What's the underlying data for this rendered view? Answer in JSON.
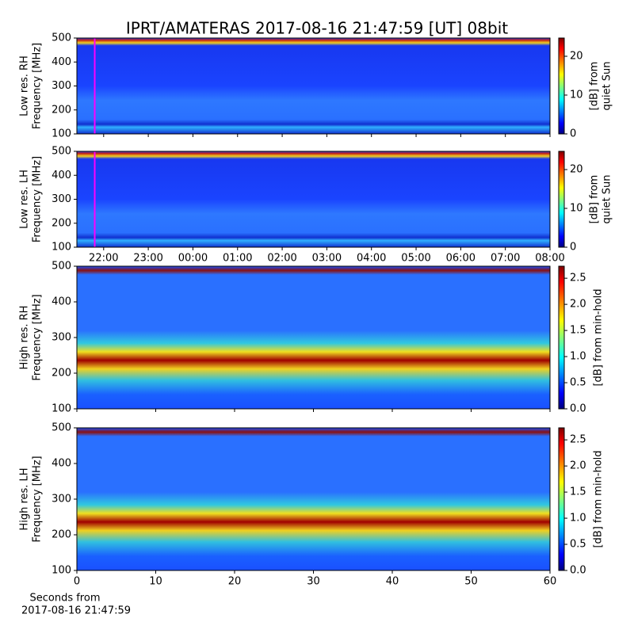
{
  "title": "IPRT/AMATERAS 2017-08-16 21:47:59 [UT]   08bit",
  "chart_data": [
    {
      "type": "spectrogram",
      "ylabel": [
        "Low res. RH",
        "Frequency [MHz]"
      ],
      "ylim": [
        100,
        500
      ],
      "yticks": [
        100,
        200,
        300,
        400,
        500
      ],
      "xlim": [
        21.4,
        32
      ],
      "marker": {
        "value": 21.8,
        "color": "#ff00ff"
      },
      "colorbar": {
        "label": [
          "[dB] from",
          "quiet Sun"
        ],
        "lim": [
          0,
          24.7
        ],
        "ticks": [
          0,
          10,
          20
        ]
      }
    },
    {
      "type": "spectrogram",
      "ylabel": [
        "Low res. LH",
        "Frequency [MHz]"
      ],
      "ylim": [
        100,
        500
      ],
      "yticks": [
        100,
        200,
        300,
        400,
        500
      ],
      "xlim": [
        21.4,
        32
      ],
      "marker": {
        "value": 21.8,
        "color": "#ff00ff"
      },
      "xticks": [
        {
          "value": 22,
          "label": "22:00"
        },
        {
          "value": 23,
          "label": "23:00"
        },
        {
          "value": 24,
          "label": "00:00"
        },
        {
          "value": 25,
          "label": "01:00"
        },
        {
          "value": 26,
          "label": "02:00"
        },
        {
          "value": 27,
          "label": "03:00"
        },
        {
          "value": 28,
          "label": "04:00"
        },
        {
          "value": 29,
          "label": "05:00"
        },
        {
          "value": 30,
          "label": "06:00"
        },
        {
          "value": 31,
          "label": "07:00"
        },
        {
          "value": 32,
          "label": "08:00"
        }
      ],
      "colorbar": {
        "label": [
          "[dB] from",
          "quiet Sun"
        ],
        "lim": [
          0,
          24.7
        ],
        "ticks": [
          0,
          10,
          20
        ]
      }
    },
    {
      "type": "spectrogram",
      "ylabel": [
        "High res. RH",
        "Frequency [MHz]"
      ],
      "ylim": [
        100,
        500
      ],
      "yticks": [
        100,
        200,
        300,
        400,
        500
      ],
      "xlim": [
        0,
        60
      ],
      "colorbar": {
        "label": [
          "[dB] from min-hold"
        ],
        "lim": [
          0,
          2.73
        ],
        "ticks": [
          {
            "value": 0,
            "label": "0.0"
          },
          0.5,
          {
            "value": 1,
            "label": "1.0"
          },
          1.5,
          {
            "value": 2,
            "label": "2.0"
          },
          2.5
        ]
      }
    },
    {
      "type": "spectrogram",
      "ylabel": [
        "High res. LH",
        "Frequency [MHz]"
      ],
      "ylim": [
        100,
        500
      ],
      "yticks": [
        100,
        200,
        300,
        400,
        500
      ],
      "xlim": [
        0,
        60
      ],
      "xticks": [
        0,
        10,
        20,
        30,
        40,
        50,
        60
      ],
      "xlabel": [
        "Seconds from",
        "2017-08-16 21:47:59"
      ],
      "colorbar": {
        "label": [
          "[dB] from min-hold"
        ],
        "lim": [
          0,
          2.73
        ],
        "ticks": [
          {
            "value": 0,
            "label": "0.0"
          },
          0.5,
          {
            "value": 1,
            "label": "1.0"
          },
          1.5,
          {
            "value": 2,
            "label": "2.0"
          },
          2.5
        ]
      }
    }
  ]
}
